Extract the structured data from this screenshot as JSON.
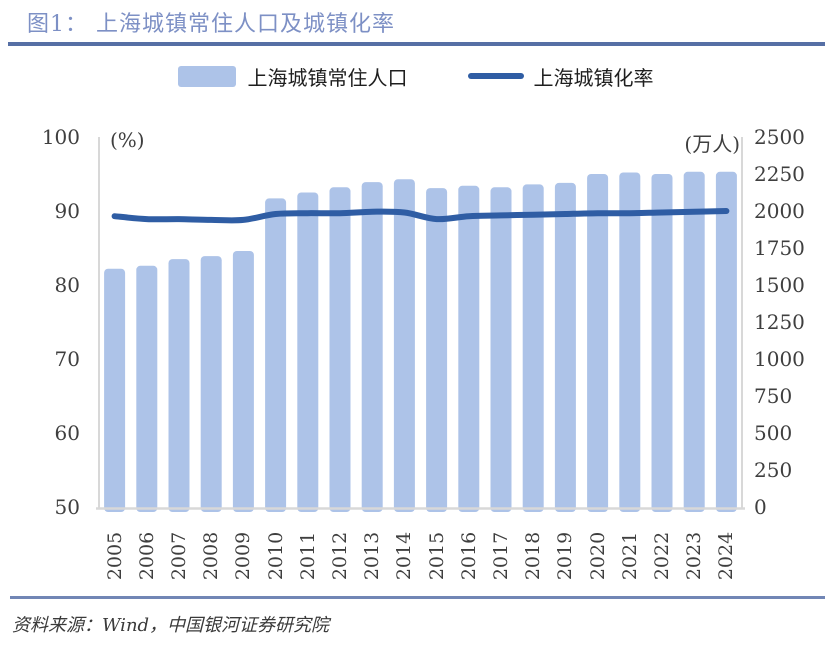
{
  "figure": {
    "title": "图1： 上海城镇常住人口及城镇化率",
    "source": "资料来源：Wind，中国银河证券研究院"
  },
  "legend": {
    "bar_label": "上海城镇常住人口",
    "line_label": "上海城镇化率"
  },
  "colors": {
    "bar": "#adc3e8",
    "line": "#2f5da4",
    "title": "#7d90c5",
    "rule_top": "#566fa5",
    "rule_bottom": "#7186b5",
    "axis_line": "#d8d8d8",
    "tick_text": "#3f3f3f"
  },
  "chart_data": {
    "type": "bar+line",
    "title": "上海城镇常住人口及城镇化率",
    "categories": [
      2005,
      2006,
      2007,
      2008,
      2009,
      2010,
      2011,
      2012,
      2013,
      2014,
      2015,
      2016,
      2017,
      2018,
      2019,
      2020,
      2021,
      2022,
      2023,
      2024
    ],
    "series": [
      {
        "name": "上海城镇常住人口",
        "type": "bar",
        "axis": "right",
        "values": [
          1610,
          1630,
          1675,
          1695,
          1730,
          2085,
          2125,
          2160,
          2195,
          2215,
          2155,
          2170,
          2160,
          2180,
          2190,
          2250,
          2260,
          2250,
          2265,
          2265
        ]
      },
      {
        "name": "上海城镇化率",
        "type": "line",
        "axis": "left",
        "values": [
          89.3,
          88.9,
          88.9,
          88.8,
          88.8,
          89.6,
          89.7,
          89.7,
          89.9,
          89.8,
          88.9,
          89.3,
          89.4,
          89.5,
          89.6,
          89.7,
          89.7,
          89.8,
          89.9,
          90.0
        ]
      }
    ],
    "left_axis": {
      "label": "(%)",
      "min": 50,
      "max": 100,
      "step": 10,
      "ticks": [
        100,
        90,
        80,
        70,
        60,
        50
      ]
    },
    "right_axis": {
      "label": "(万人)",
      "min": 0,
      "max": 2500,
      "step": 250,
      "ticks": [
        2500,
        2250,
        2000,
        1750,
        1500,
        1250,
        1000,
        750,
        500,
        250,
        0
      ]
    },
    "grid": false,
    "legend_position": "top"
  }
}
